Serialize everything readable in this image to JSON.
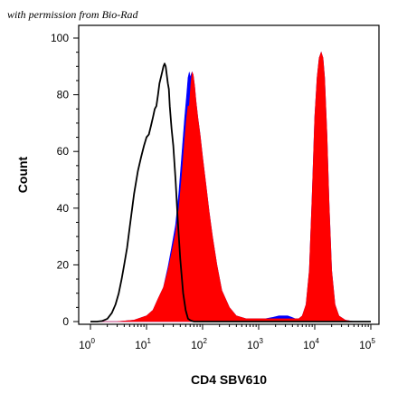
{
  "credit": "with permission from Bio-Rad",
  "chart_data": {
    "type": "area",
    "xlabel": "CD4 SBV610",
    "ylabel": "Count",
    "x_scale": "log",
    "xlim": [
      1,
      100000
    ],
    "ylim": [
      0,
      100
    ],
    "grid": false,
    "x_ticks": [
      {
        "base": "10",
        "exp": "0",
        "value": 1
      },
      {
        "base": "10",
        "exp": "1",
        "value": 10
      },
      {
        "base": "10",
        "exp": "2",
        "value": 100
      },
      {
        "base": "10",
        "exp": "3",
        "value": 1000
      },
      {
        "base": "10",
        "exp": "4",
        "value": 10000
      },
      {
        "base": "10",
        "exp": "5",
        "value": 100000
      }
    ],
    "y_ticks": [
      "0",
      "20",
      "40",
      "60",
      "80",
      "100"
    ],
    "series": [
      {
        "color": "#0000ff",
        "style": "filled",
        "x": [
          1,
          1.7,
          3,
          6,
          10,
          13,
          16,
          20,
          24,
          28,
          33,
          38,
          43,
          48,
          52,
          55,
          58,
          60,
          62,
          65,
          68,
          72,
          76,
          82,
          90,
          100,
          115,
          130,
          150,
          180,
          220,
          300,
          400,
          600,
          900,
          1300,
          1800,
          2300,
          2800,
          3300,
          3900,
          4500,
          5200,
          6000,
          7000,
          8000,
          9000,
          10000,
          11000,
          12000,
          13000,
          14000,
          15000,
          16500,
          18000,
          20000,
          23000,
          27000,
          35000,
          50000,
          80000,
          100000
        ],
        "y": [
          0,
          0,
          0,
          0.5,
          2,
          4,
          8,
          12,
          19,
          26,
          34,
          46,
          60,
          72,
          80,
          86,
          88,
          86,
          87,
          88,
          87,
          83,
          78,
          72,
          66,
          58,
          48,
          39,
          30,
          20,
          11,
          5,
          2,
          1,
          1,
          1,
          1.5,
          2,
          2,
          2,
          1.5,
          1,
          1,
          2,
          6,
          18,
          45,
          72,
          86,
          93,
          95,
          93,
          86,
          66,
          42,
          18,
          6,
          2,
          0.5,
          0,
          0,
          0
        ]
      },
      {
        "color": "#ff0000",
        "style": "filled",
        "x": [
          1,
          1.7,
          3,
          6,
          10,
          13,
          16,
          20,
          24,
          28,
          33,
          38,
          43,
          48,
          52,
          55,
          58,
          60,
          62,
          65,
          68,
          72,
          76,
          82,
          90,
          100,
          115,
          130,
          150,
          180,
          220,
          300,
          400,
          600,
          900,
          1300,
          1800,
          2300,
          2800,
          3300,
          3900,
          4500,
          5200,
          6000,
          7000,
          8000,
          9000,
          10000,
          11000,
          12000,
          13000,
          14000,
          15000,
          16500,
          18000,
          20000,
          23000,
          27000,
          35000,
          50000,
          80000,
          100000
        ],
        "y": [
          0,
          0,
          0,
          0.5,
          2,
          4,
          8,
          12,
          18,
          24,
          31,
          40,
          52,
          64,
          72,
          76,
          76,
          80,
          84,
          88,
          87,
          83,
          78,
          72,
          66,
          58,
          48,
          39,
          30,
          20,
          11,
          5,
          2,
          1,
          1,
          1,
          1,
          1,
          1,
          1,
          1,
          1,
          1,
          2,
          6,
          18,
          45,
          72,
          86,
          93,
          95,
          93,
          86,
          66,
          42,
          18,
          6,
          2,
          0.5,
          0,
          0,
          0
        ]
      },
      {
        "color": "#000000",
        "style": "line",
        "x": [
          1,
          1.3,
          1.6,
          2,
          2.4,
          2.8,
          3.2,
          3.6,
          4,
          4.5,
          5,
          6,
          7,
          8,
          9,
          10,
          11,
          12,
          13,
          14,
          15,
          16,
          17,
          18,
          19,
          20,
          21,
          22,
          23,
          24,
          25,
          26,
          28,
          30,
          33,
          36,
          40,
          45,
          50,
          55,
          60,
          65,
          70,
          80,
          100,
          150,
          300,
          1000,
          3000,
          10000,
          100000
        ],
        "y": [
          0,
          0,
          0.2,
          1,
          3,
          6,
          10,
          15,
          20,
          26,
          33,
          45,
          53,
          58,
          62,
          65,
          66,
          69,
          72,
          75,
          76,
          80,
          84,
          86,
          88,
          90,
          91,
          90,
          87,
          84,
          82,
          76,
          68,
          62,
          50,
          36,
          22,
          10,
          4,
          1,
          0.5,
          0.2,
          0,
          0,
          0,
          0,
          0,
          0,
          0,
          0,
          0
        ]
      }
    ]
  }
}
